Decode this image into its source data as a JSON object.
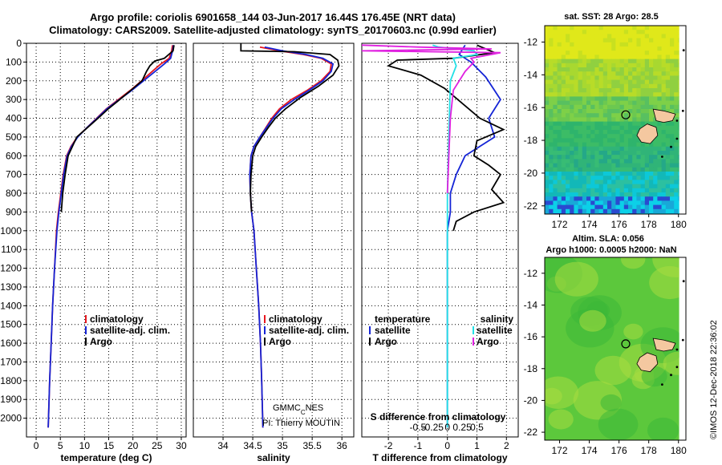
{
  "header": {
    "title_line1": "Argo profile: coriolis 6901658_144 03-Jun-2017 16.44S 176.45E (NRT data)",
    "title_line2": "Climatology: CARS2009. Satellite-adjusted climatology: synTS_20170603.nc (0.99d earlier)"
  },
  "colors": {
    "climatology": "#e8161e",
    "satellite": "#1424d6",
    "argo": "#000000",
    "salinity_sat": "#22e0e6",
    "salinity_argo": "#e020e0"
  },
  "chart_data": [
    {
      "type": "line",
      "title": "",
      "xlabel": "temperature (deg C)",
      "ylabel": "",
      "xlim": [
        -2,
        31
      ],
      "ylim": [
        2100,
        0
      ],
      "x_ticks": [
        "0",
        "5",
        "10",
        "15",
        "20",
        "25",
        "30"
      ],
      "y_ticks": [
        "0",
        "100",
        "200",
        "300",
        "400",
        "500",
        "600",
        "700",
        "800",
        "900",
        "1000",
        "1100",
        "1200",
        "1300",
        "1400",
        "1500",
        "1600",
        "1700",
        "1800",
        "1900",
        "2000"
      ],
      "legend": [
        "climatology",
        "satellite-adj. clim.",
        "Argo"
      ],
      "series": [
        {
          "name": "climatology",
          "points": [
            [
              28.2,
              10
            ],
            [
              28.0,
              40
            ],
            [
              27.5,
              80
            ],
            [
              25.8,
              110
            ],
            [
              24.0,
              150
            ],
            [
              21.8,
              200
            ],
            [
              19.5,
              250
            ],
            [
              17.0,
              300
            ],
            [
              14.5,
              350
            ],
            [
              12.5,
              400
            ],
            [
              10.5,
              450
            ],
            [
              8.5,
              500
            ],
            [
              7.2,
              550
            ],
            [
              6.3,
              600
            ],
            [
              5.6,
              700
            ],
            [
              5.1,
              800
            ],
            [
              4.6,
              900
            ],
            [
              4.2,
              1000
            ],
            [
              3.8,
              1200
            ],
            [
              3.4,
              1400
            ],
            [
              3.1,
              1600
            ],
            [
              2.8,
              1800
            ],
            [
              2.5,
              2050
            ]
          ]
        },
        {
          "name": "satellite-adj. clim.",
          "points": [
            [
              28.4,
              10
            ],
            [
              28.2,
              40
            ],
            [
              27.8,
              80
            ],
            [
              26.5,
              110
            ],
            [
              24.6,
              150
            ],
            [
              22.2,
              200
            ],
            [
              19.8,
              250
            ],
            [
              17.2,
              300
            ],
            [
              14.6,
              350
            ],
            [
              12.6,
              400
            ],
            [
              10.5,
              450
            ],
            [
              8.6,
              500
            ],
            [
              7.3,
              550
            ],
            [
              6.4,
              600
            ],
            [
              5.7,
              700
            ],
            [
              5.2,
              800
            ],
            [
              4.7,
              900
            ],
            [
              4.3,
              1000
            ],
            [
              3.8,
              1200
            ],
            [
              3.4,
              1400
            ],
            [
              3.1,
              1600
            ],
            [
              2.8,
              1800
            ],
            [
              2.5,
              2050
            ]
          ]
        },
        {
          "name": "Argo",
          "points": [
            [
              28.5,
              10
            ],
            [
              28.3,
              40
            ],
            [
              26.5,
              80
            ],
            [
              24.5,
              95
            ],
            [
              23.5,
              120
            ],
            [
              22.8,
              150
            ],
            [
              21.9,
              200
            ],
            [
              19.6,
              250
            ],
            [
              17.3,
              300
            ],
            [
              14.9,
              350
            ],
            [
              12.8,
              400
            ],
            [
              10.6,
              450
            ],
            [
              8.4,
              500
            ],
            [
              7.5,
              550
            ],
            [
              6.6,
              600
            ],
            [
              6.0,
              700
            ],
            [
              5.5,
              800
            ],
            [
              5.2,
              900
            ]
          ]
        }
      ]
    },
    {
      "type": "line",
      "title": "",
      "xlabel": "salinity",
      "xlim": [
        33.5,
        36.2
      ],
      "ylim": [
        2100,
        0
      ],
      "x_ticks": [
        "34",
        "34.5",
        "35",
        "35.5",
        "36"
      ],
      "legend": [
        "climatology",
        "satellite-adj. clim.",
        "Argo"
      ],
      "series": [
        {
          "name": "climatology",
          "points": [
            [
              34.62,
              20
            ],
            [
              34.95,
              40
            ],
            [
              35.35,
              60
            ],
            [
              35.65,
              80
            ],
            [
              35.82,
              110
            ],
            [
              35.8,
              150
            ],
            [
              35.65,
              200
            ],
            [
              35.42,
              250
            ],
            [
              35.15,
              300
            ],
            [
              34.95,
              350
            ],
            [
              34.82,
              400
            ],
            [
              34.72,
              450
            ],
            [
              34.62,
              500
            ],
            [
              34.52,
              550
            ],
            [
              34.47,
              600
            ],
            [
              34.45,
              700
            ],
            [
              34.46,
              800
            ],
            [
              34.48,
              900
            ],
            [
              34.52,
              1000
            ],
            [
              34.56,
              1200
            ],
            [
              34.6,
              1400
            ],
            [
              34.63,
              1600
            ],
            [
              34.65,
              1800
            ],
            [
              34.67,
              2050
            ]
          ]
        },
        {
          "name": "satellite-adj. clim.",
          "points": [
            [
              34.7,
              20
            ],
            [
              35.0,
              40
            ],
            [
              35.4,
              60
            ],
            [
              35.68,
              80
            ],
            [
              35.85,
              110
            ],
            [
              35.82,
              150
            ],
            [
              35.68,
              200
            ],
            [
              35.45,
              250
            ],
            [
              35.2,
              300
            ],
            [
              34.98,
              350
            ],
            [
              34.84,
              400
            ],
            [
              34.73,
              450
            ],
            [
              34.62,
              500
            ],
            [
              34.52,
              550
            ],
            [
              34.47,
              600
            ],
            [
              34.45,
              700
            ],
            [
              34.46,
              800
            ],
            [
              34.48,
              900
            ],
            [
              34.52,
              1000
            ],
            [
              34.56,
              1200
            ],
            [
              34.6,
              1400
            ],
            [
              34.63,
              1600
            ],
            [
              34.65,
              1800
            ],
            [
              34.67,
              2050
            ]
          ]
        },
        {
          "name": "Argo",
          "points": [
            [
              34.3,
              0
            ],
            [
              34.3,
              40
            ],
            [
              35.2,
              45
            ],
            [
              35.8,
              60
            ],
            [
              35.93,
              90
            ],
            [
              35.95,
              120
            ],
            [
              35.85,
              170
            ],
            [
              35.6,
              230
            ],
            [
              35.3,
              290
            ],
            [
              35.05,
              350
            ],
            [
              34.88,
              400
            ],
            [
              34.76,
              450
            ],
            [
              34.65,
              500
            ],
            [
              34.55,
              550
            ],
            [
              34.5,
              600
            ],
            [
              34.47,
              700
            ],
            [
              34.46,
              800
            ],
            [
              34.48,
              900
            ]
          ]
        }
      ]
    },
    {
      "type": "line",
      "title": "S difference from climatology",
      "xlabel": "T difference from climatology",
      "xlim": [
        -2.9,
        2.4
      ],
      "ylim": [
        2100,
        0
      ],
      "x_ticks": [
        "-2",
        "-1",
        "0",
        "1",
        "2"
      ],
      "x_ticks_top": [
        "-0.5",
        "-0.25",
        "0",
        "0.25",
        "0.5"
      ],
      "legend_left_title": "temperature",
      "legend_right_title": "salinity",
      "legend": [
        "satellite",
        "Argo",
        "satellite",
        "Argo"
      ],
      "series": [
        {
          "name": "temperature satellite",
          "points": [
            [
              0.6,
              10
            ],
            [
              0.4,
              60
            ],
            [
              0.8,
              100
            ],
            [
              1.3,
              180
            ],
            [
              1.8,
              300
            ],
            [
              1.4,
              400
            ],
            [
              1.6,
              500
            ],
            [
              0.6,
              600
            ],
            [
              0.3,
              700
            ],
            [
              0.1,
              800
            ],
            [
              0.1,
              900
            ],
            [
              0.0,
              1000
            ],
            [
              0.0,
              1500
            ],
            [
              0.0,
              2050
            ]
          ]
        },
        {
          "name": "temperature Argo",
          "points": [
            [
              1.0,
              10
            ],
            [
              1.6,
              50
            ],
            [
              0.2,
              80
            ],
            [
              -1.7,
              90
            ],
            [
              -2.0,
              120
            ],
            [
              -0.9,
              170
            ],
            [
              -0.1,
              240
            ],
            [
              0.5,
              320
            ],
            [
              1.1,
              400
            ],
            [
              1.9,
              460
            ],
            [
              1.0,
              520
            ],
            [
              0.9,
              600
            ],
            [
              1.4,
              650
            ],
            [
              1.8,
              700
            ],
            [
              1.5,
              780
            ],
            [
              1.9,
              850
            ],
            [
              0.9,
              900
            ],
            [
              0.3,
              950
            ],
            [
              0.2,
              1000
            ]
          ]
        },
        {
          "name": "salinity satellite",
          "points": [
            [
              -0.5,
              10
            ],
            [
              -0.3,
              20
            ],
            [
              0.9,
              40
            ],
            [
              1.0,
              60
            ],
            [
              0.2,
              80
            ],
            [
              0.3,
              120
            ],
            [
              0.1,
              200
            ],
            [
              0.05,
              500
            ],
            [
              0.0,
              800
            ],
            [
              0.0,
              1500
            ],
            [
              0.0,
              2050
            ]
          ]
        },
        {
          "name": "salinity Argo",
          "points": [
            [
              -2.9,
              10
            ],
            [
              -1.0,
              20
            ],
            [
              1.5,
              30
            ],
            [
              -2.9,
              40
            ],
            [
              1.8,
              50
            ],
            [
              0.8,
              80
            ],
            [
              0.9,
              100
            ],
            [
              0.6,
              150
            ],
            [
              0.2,
              250
            ],
            [
              0.1,
              400
            ],
            [
              0.05,
              600
            ],
            [
              0.0,
              800
            ]
          ]
        }
      ]
    },
    {
      "type": "heatmap",
      "title": "sat. SST: 28 Argo: 28.5",
      "xlim": [
        171,
        180.5
      ],
      "ylim": [
        -22.5,
        -11
      ],
      "x_ticks": [
        "172",
        "174",
        "176",
        "178",
        "180"
      ],
      "y_ticks": [
        "-12",
        "-14",
        "-16",
        "-18",
        "-20",
        "-22"
      ],
      "marker": {
        "lon": 176.45,
        "lat": -16.44
      }
    },
    {
      "type": "heatmap",
      "title": "Altim. SLA: 0.056",
      "subtitle": "Argo h1000: 0.0005 h2000: NaN",
      "xlim": [
        171,
        180.5
      ],
      "ylim": [
        -22.5,
        -11
      ],
      "x_ticks": [
        "172",
        "174",
        "176",
        "178",
        "180"
      ],
      "y_ticks": [
        "-12",
        "-14",
        "-16",
        "-18",
        "-20",
        "-22"
      ],
      "marker": {
        "lon": 176.45,
        "lat": -16.44
      }
    }
  ],
  "credits": {
    "line1": "GMMC",
    "line1_sub": "C",
    "line1_end": "NES",
    "line2": "PI: Thierry MOUTIN"
  },
  "footer": {
    "stamp": "©IMOS 12-Dec-2018 22:36:02"
  }
}
